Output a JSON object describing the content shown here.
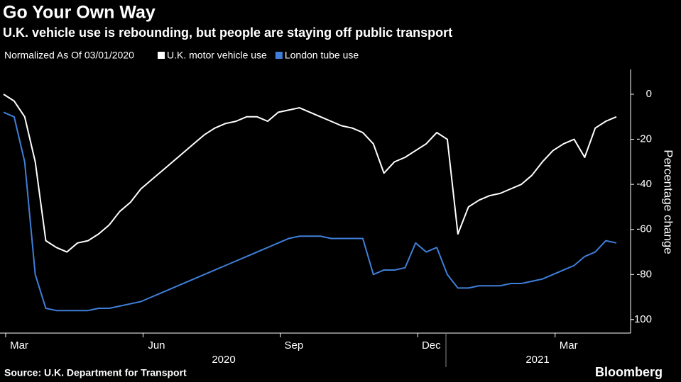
{
  "chart_data": {
    "type": "line",
    "title": "Go Your Own Way",
    "subtitle": "U.K. vehicle use is rebounding, but people are staying off public transport",
    "legend_title": "Normalized As Of 03/01/2020",
    "y_label": "Percentage change",
    "source": "Source: U.K. Department for Transport",
    "brand": "Bloomberg",
    "categories": [
      "Mar",
      null,
      null,
      null,
      null,
      null,
      null,
      null,
      null,
      null,
      null,
      null,
      null,
      "Jun",
      null,
      null,
      null,
      null,
      null,
      null,
      null,
      null,
      null,
      null,
      null,
      null,
      "Sep",
      null,
      null,
      null,
      null,
      null,
      null,
      null,
      null,
      null,
      null,
      null,
      null,
      "Dec",
      null,
      null,
      null,
      null,
      null,
      null,
      null,
      null,
      null,
      null,
      null,
      null,
      "Mar",
      null,
      null,
      null,
      null,
      null,
      null
    ],
    "year_labels": [
      "2020",
      "2021"
    ],
    "series": [
      {
        "name": "U.K. motor vehicle use",
        "color": "#ffffff",
        "values": [
          0,
          -3,
          -10,
          -30,
          -65,
          -68,
          -70,
          -66,
          -65,
          -62,
          -58,
          -52,
          -48,
          -42,
          -38,
          -34,
          -30,
          -26,
          -22,
          -18,
          -15,
          -13,
          -12,
          -10,
          -10,
          -12,
          -8,
          -7,
          -6,
          -8,
          -10,
          -12,
          -14,
          -15,
          -17,
          -22,
          -35,
          -30,
          -28,
          -25,
          -22,
          -17,
          -20,
          -62,
          -50,
          -47,
          -45,
          -44,
          -42,
          -40,
          -36,
          -30,
          -25,
          -22,
          -20,
          -28,
          -15,
          -12,
          -10
        ]
      },
      {
        "name": "London tube use",
        "color": "#3f7fd9",
        "values": [
          -8,
          -10,
          -30,
          -80,
          -95,
          -96,
          -96,
          -96,
          -96,
          -95,
          -95,
          -94,
          -93,
          -92,
          -90,
          -88,
          -86,
          -84,
          -82,
          -80,
          -78,
          -76,
          -74,
          -72,
          -70,
          -68,
          -66,
          -64,
          -63,
          -63,
          -63,
          -64,
          -64,
          -64,
          -64,
          -80,
          -78,
          -78,
          -77,
          -66,
          -70,
          -68,
          -80,
          -86,
          -86,
          -85,
          -85,
          -85,
          -84,
          -84,
          -83,
          -82,
          -80,
          -78,
          -76,
          -72,
          -70,
          -65,
          -66
        ]
      }
    ],
    "ylim": [
      -106,
      11
    ],
    "yticks": [
      0,
      -20,
      -40,
      -60,
      -80,
      -100
    ]
  }
}
